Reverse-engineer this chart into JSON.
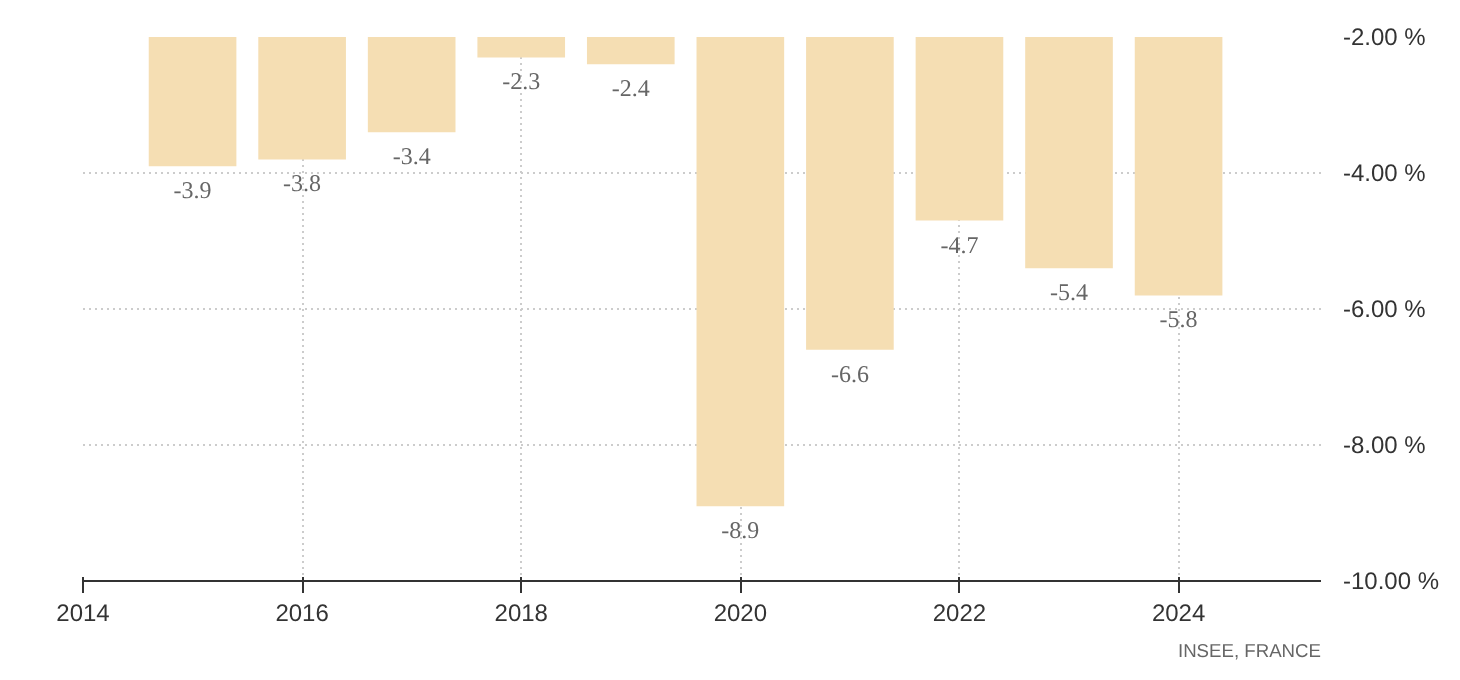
{
  "chart_data": {
    "type": "bar",
    "x": [
      2015,
      2016,
      2017,
      2018,
      2019,
      2020,
      2021,
      2022,
      2023,
      2024
    ],
    "values": [
      -3.9,
      -3.8,
      -3.4,
      -2.3,
      -2.4,
      -8.9,
      -6.6,
      -4.7,
      -5.4,
      -5.8
    ],
    "color": "#f5deb3",
    "data_labels": true,
    "xlim": [
      2014,
      2025.3
    ],
    "xticks": [
      2014,
      2016,
      2018,
      2020,
      2022,
      2024
    ],
    "ylim": [
      -10,
      -2
    ],
    "yticks": [
      {
        "value": -2,
        "label": "-2.00 %"
      },
      {
        "value": -4,
        "label": "-4.00 %"
      },
      {
        "value": -6,
        "label": "-6.00 %"
      },
      {
        "value": -8,
        "label": "-8.00 %"
      },
      {
        "value": -10,
        "label": "-10.00 %"
      }
    ],
    "grid": true,
    "annotations": [
      "INSEE, FRANCE"
    ]
  }
}
